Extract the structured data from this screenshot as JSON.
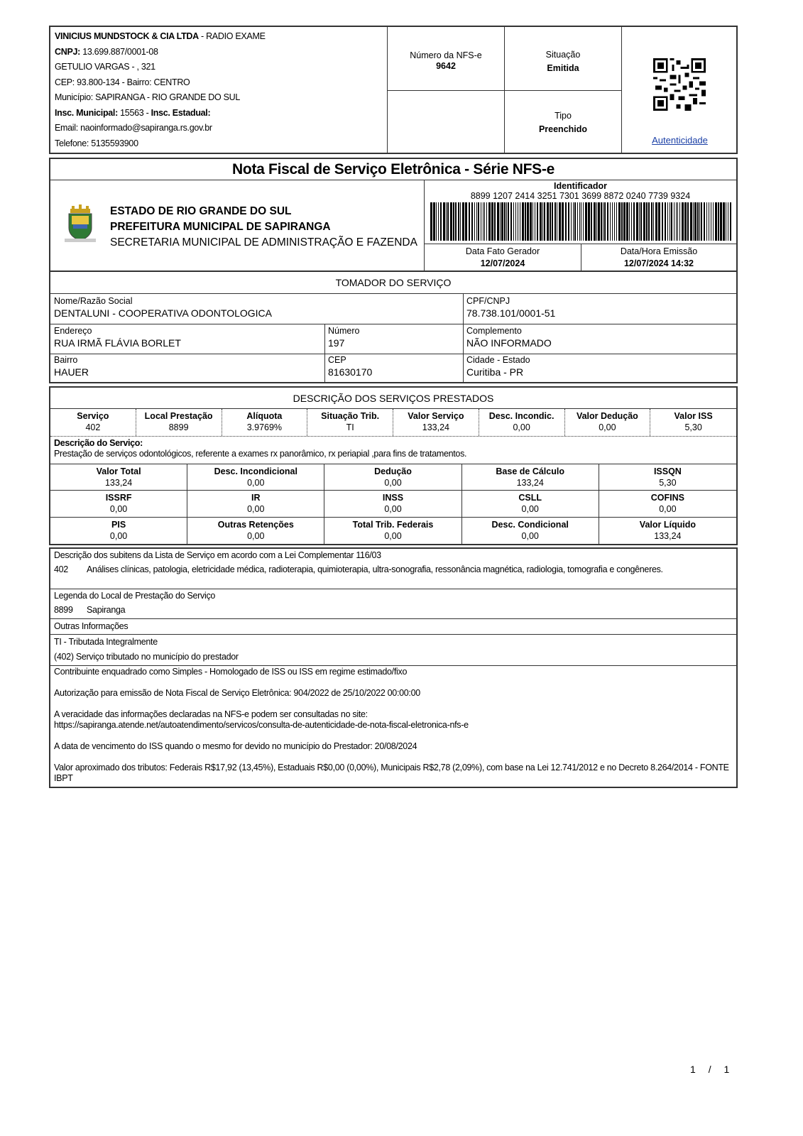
{
  "prestador": {
    "nome": "VINICIUS MUNDSTOCK & CIA LTDA",
    "nome_sufixo": " - RADIO EXAME",
    "cnpj_label": "CNPJ:",
    "cnpj": " 13.699.887/0001-08",
    "endereco": "GETULIO VARGAS - , 321",
    "cep_bairro": "CEP: 93.800-134 - Bairro: CENTRO",
    "municipio": "Município: SAPIRANGA - RIO GRANDE DO SUL",
    "insc_mun_label": "Insc. Municipal:",
    "insc_mun": " 15563 - ",
    "insc_est_label": "Insc. Estadual:",
    "email": "Email: naoinformado@sapiranga.rs.gov.br",
    "telefone": "Telefone: 5135593900"
  },
  "nfse": {
    "numero_label": "Número da NFS-e",
    "numero": "9642",
    "situacao_label": "Situação",
    "situacao": "Emitida",
    "tipo_label": "Tipo",
    "tipo": "Preenchido",
    "autenticidade": "Autenticidade"
  },
  "title": "Nota Fiscal de Serviço Eletrônica - Série NFS-e",
  "orgao": {
    "linha1": "ESTADO DE RIO GRANDE DO SUL",
    "linha2": "PREFEITURA MUNICIPAL DE SAPIRANGA",
    "linha3": "SECRETARIA MUNICIPAL DE ADMINISTRAÇÃO E FAZENDA"
  },
  "identificador": {
    "label": "Identificador",
    "value": "8899 1207 2414 3251 7301 3699 8872 0240 7739 9324"
  },
  "datas": {
    "fato_label": "Data Fato Gerador",
    "fato": "12/07/2024",
    "emissao_label": "Data/Hora Emissão",
    "emissao": "12/07/2024 14:32"
  },
  "tomador": {
    "header": "TOMADOR DO SERVIÇO",
    "nome_label": "Nome/Razão Social",
    "nome": "DENTALUNI - COOPERATIVA ODONTOLOGICA",
    "cpf_label": "CPF/CNPJ",
    "cpf": "78.738.101/0001-51",
    "endereco_label": "Endereço",
    "endereco": "RUA IRMÃ FLÁVIA BORLET",
    "numero_label": "Número",
    "numero": "197",
    "complemento_label": "Complemento",
    "complemento": "NÃO INFORMADO",
    "bairro_label": "Bairro",
    "bairro": "HAUER",
    "cep_label": "CEP",
    "cep": "81630170",
    "cidade_label": "Cidade - Estado",
    "cidade": "Curitiba - PR"
  },
  "servicos": {
    "header": "DESCRIÇÃO DOS SERVIÇOS PRESTADOS",
    "items": [
      {
        "label": "Serviço",
        "value": "402"
      },
      {
        "label": "Local Prestação",
        "value": "8899"
      },
      {
        "label": "Alíquota",
        "value": "3.9769%"
      },
      {
        "label": "Situação Trib.",
        "value": "TI"
      },
      {
        "label": "Valor Serviço",
        "value": "133,24"
      },
      {
        "label": "Desc. Incondic.",
        "value": "0,00"
      },
      {
        "label": "Valor Dedução",
        "value": "0,00"
      },
      {
        "label": "Valor ISS",
        "value": "5,30"
      }
    ],
    "descricao_label": "Descrição do Serviço:",
    "descricao": "Prestação de serviços odontológicos, referente a exames rx panorâmico, rx periapial ,para fins de tratamentos.",
    "totais": [
      {
        "label": "Valor Total",
        "value": "133,24"
      },
      {
        "label": "Desc. Incondicional",
        "value": "0,00"
      },
      {
        "label": "Dedução",
        "value": "0,00"
      },
      {
        "label": "Base de Cálculo",
        "value": "133,24"
      },
      {
        "label": "ISSQN",
        "value": "5,30"
      },
      {
        "label": "ISSRF",
        "value": "0,00"
      },
      {
        "label": "IR",
        "value": "0,00"
      },
      {
        "label": "INSS",
        "value": "0,00"
      },
      {
        "label": "CSLL",
        "value": "0,00"
      },
      {
        "label": "COFINS",
        "value": "0,00"
      },
      {
        "label": "PIS",
        "value": "0,00"
      },
      {
        "label": "Outras Retenções",
        "value": "0,00"
      },
      {
        "label": "Total Trib. Federais",
        "value": "0,00"
      },
      {
        "label": "Desc. Condicional",
        "value": "0,00"
      },
      {
        "label": "Valor Líquido",
        "value": "133,24"
      }
    ]
  },
  "subitens": {
    "label": "Descrição dos subitens da Lista de Serviço em acordo com a Lei Complementar 116/03",
    "codigo": "402",
    "texto": "Análises clínicas, patologia, eletricidade médica, radioterapia, quimioterapia, ultra-sonografia, ressonância magnética, radiologia, tomografia e congêneres."
  },
  "legenda": {
    "label": "Legenda do Local de Prestação do Serviço",
    "codigo": "8899",
    "texto": "Sapiranga"
  },
  "outras": {
    "label": "Outras Informações",
    "linha1": "TI - Tributada Integralmente",
    "linha2": "(402) Serviço tributado no município do prestador"
  },
  "observacoes": [
    "Contribuinte enquadrado como Simples - Homologado de ISS ou ISS em regime estimado/fixo",
    "Autorização para emissão de Nota Fiscal de Serviço Eletrônica: 904/2022 de 25/10/2022 00:00:00",
    "A veracidade das informações declaradas na NFS-e podem ser consultadas no site:\nhttps://sapiranga.atende.net/autoatendimento/servicos/consulta-de-autenticidade-de-nota-fiscal-eletronica-nfs-e",
    "A data de vencimento do ISS quando o mesmo for devido no município do Prestador: 20/08/2024",
    "Valor aproximado dos tributos: Federais R$17,92 (13,45%), Estaduais R$0,00 (0,00%), Municipais R$2,78 (2,09%), com base na Lei 12.741/2012 e no Decreto 8.264/2014 - FONTE IBPT"
  ],
  "pagina": {
    "atual": "1",
    "sep": "/",
    "total": "1"
  }
}
